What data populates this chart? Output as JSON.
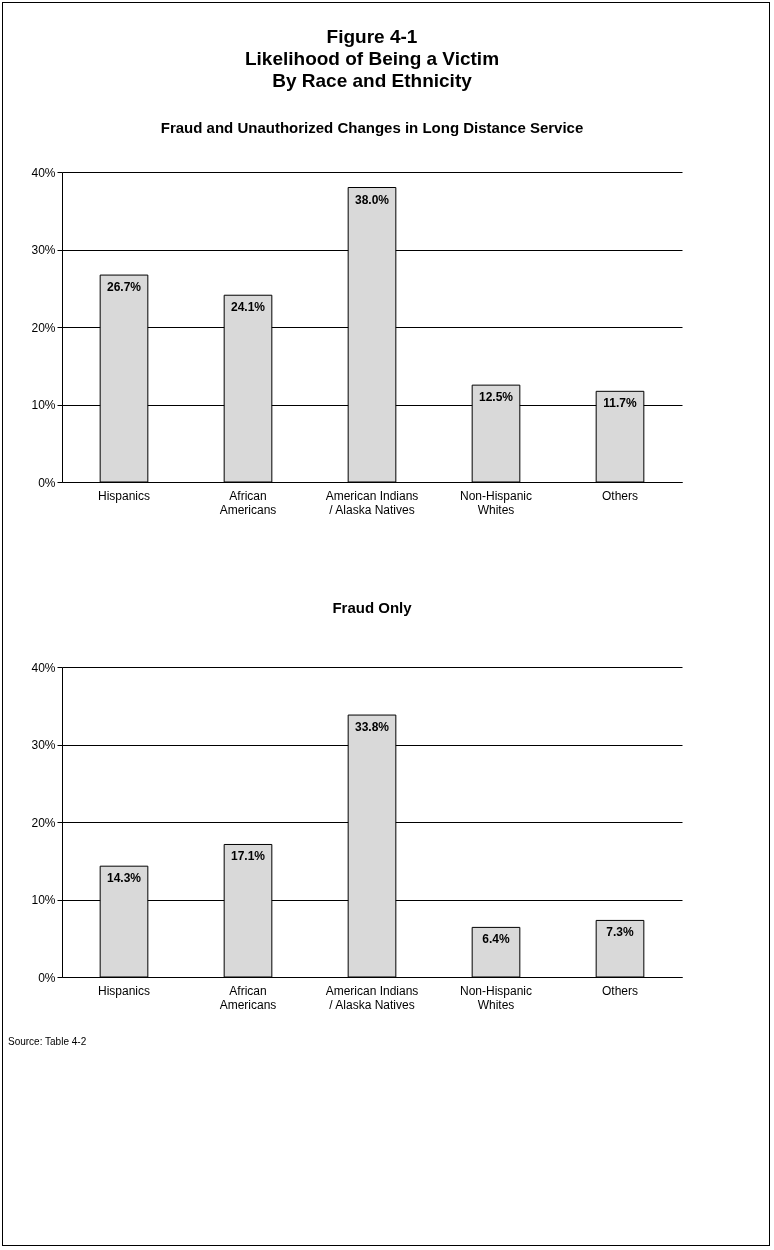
{
  "chart_data": [
    {
      "type": "bar",
      "title": "Figure 4-1\nLikelihood of Being a Victim\nBy Race and Ethnicity",
      "subtitle": "Fraud and Unauthorized Changes in Long Distance Service",
      "categories": [
        "Hispanics",
        "African\nAmericans",
        "American Indians\n/ Alaska Natives",
        "Non-Hispanic\nWhites",
        "Others"
      ],
      "values": [
        26.7,
        24.1,
        38.0,
        12.5,
        11.7
      ],
      "value_labels": [
        "26.7%",
        "24.1%",
        "38.0%",
        "12.5%",
        "11.7%"
      ],
      "color": "#d9d9d9",
      "ylim": [
        0,
        40
      ],
      "yticks": [
        {
          "value": 0,
          "label": "0%"
        },
        {
          "value": 10,
          "label": "10%"
        },
        {
          "value": 20,
          "label": "20%"
        },
        {
          "value": 30,
          "label": "30%"
        },
        {
          "value": 40,
          "label": "40%"
        }
      ],
      "grid": "y"
    },
    {
      "type": "bar",
      "title": "Fraud Only",
      "categories": [
        "Hispanics",
        "African\nAmericans",
        "American Indians\n/ Alaska Natives",
        "Non-Hispanic\nWhites",
        "Others"
      ],
      "values": [
        14.3,
        17.1,
        33.8,
        6.4,
        7.3
      ],
      "value_labels": [
        "14.3%",
        "17.1%",
        "33.8%",
        "6.4%",
        "7.3%"
      ],
      "color": "#d9d9d9",
      "ylim": [
        0,
        40
      ],
      "yticks": [
        {
          "value": 0,
          "label": "0%"
        },
        {
          "value": 10,
          "label": "10%"
        },
        {
          "value": 20,
          "label": "20%"
        },
        {
          "value": 30,
          "label": "30%"
        },
        {
          "value": 40,
          "label": "40%"
        }
      ],
      "grid": "y",
      "annotations": [
        "Source: Table 4-2"
      ]
    }
  ]
}
